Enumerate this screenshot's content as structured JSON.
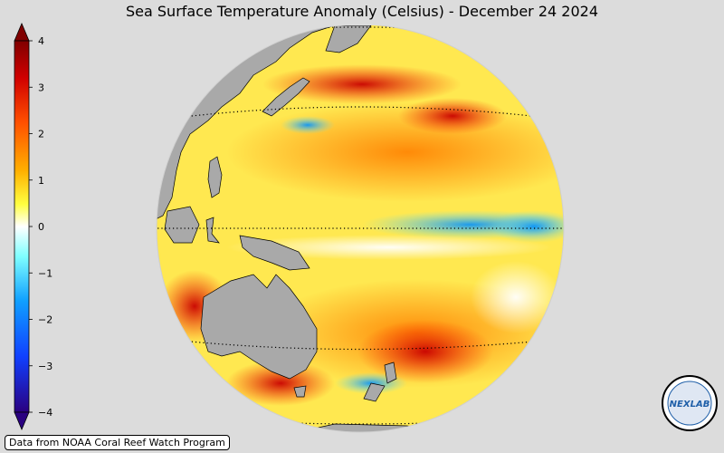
{
  "title": "Sea Surface Temperature Anomaly (Celsius) - December 24 2024",
  "colorbar": {
    "ticks": [
      "4",
      "3",
      "2",
      "1",
      "0",
      "−1",
      "−2",
      "−3",
      "−4"
    ],
    "range": [
      -4,
      4
    ],
    "colors": [
      "#2a0080",
      "#1040ff",
      "#10a0ff",
      "#80ffff",
      "#ffffff",
      "#ffff40",
      "#ffb000",
      "#ff5000",
      "#d00000",
      "#800000"
    ]
  },
  "map": {
    "projection": "orthographic",
    "center": "central Pacific",
    "land_color": "#a9a9a9"
  },
  "credit": "Data from NOAA Coral Reef Watch Program",
  "logo": {
    "text": "NEXLAB",
    "ring_text": "NATIONAL UNIVERSITY"
  }
}
